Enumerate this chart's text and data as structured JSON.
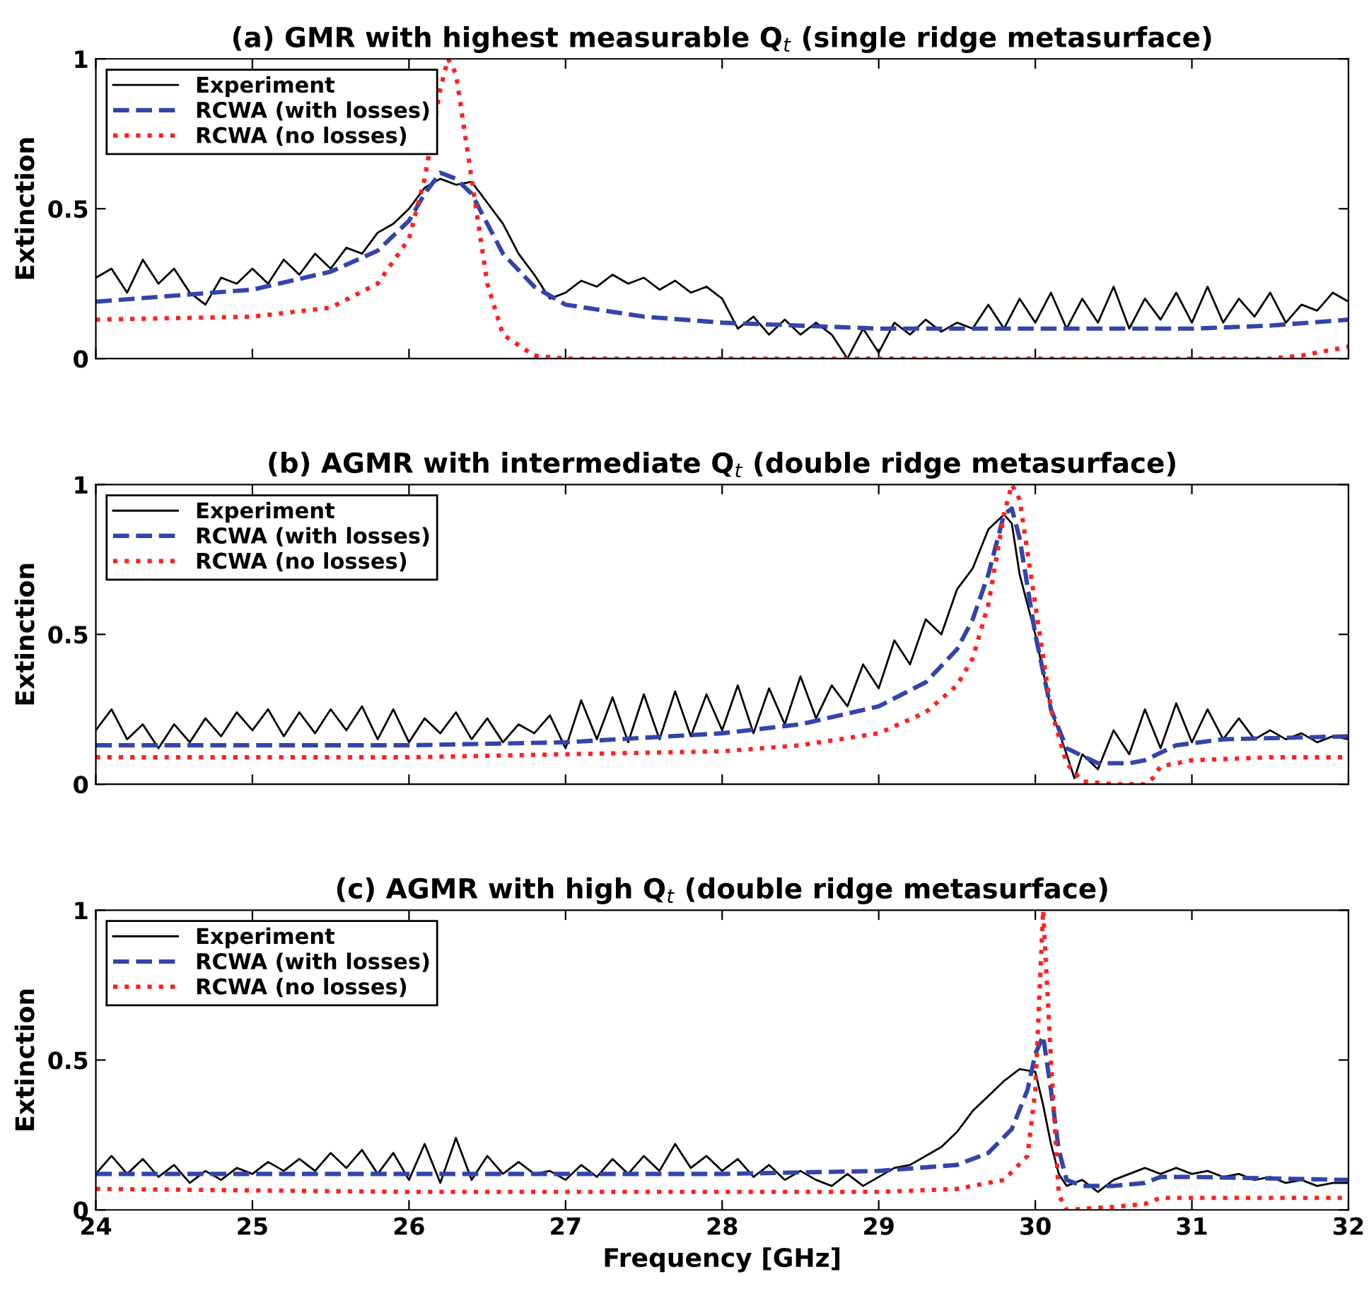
{
  "chart_data": [
    {
      "type": "line",
      "title": "(a) GMR with highest measurable Q$_{t}$ (single ridge metasurface)",
      "ylabel": "Extinction",
      "xlim": [
        24,
        32
      ],
      "ylim": [
        0,
        1
      ],
      "xticks": [
        24,
        25,
        26,
        27,
        28,
        29,
        30,
        31,
        32
      ],
      "yticks": [
        0,
        0.5,
        1
      ],
      "tick_labels": "y",
      "legend": "top left",
      "grid": false,
      "series": [
        {
          "name": "Experiment",
          "color": "#000000",
          "line_style": "solid",
          "x": [
            24,
            24.1,
            24.2,
            24.3,
            24.4,
            24.5,
            24.6,
            24.7,
            24.8,
            24.9,
            25.0,
            25.1,
            25.2,
            25.3,
            25.4,
            25.5,
            25.6,
            25.7,
            25.8,
            25.9,
            26.0,
            26.1,
            26.2,
            26.3,
            26.4,
            26.5,
            26.6,
            26.7,
            26.8,
            26.9,
            27.0,
            27.1,
            27.2,
            27.3,
            27.4,
            27.5,
            27.6,
            27.7,
            27.8,
            27.9,
            28.0,
            28.1,
            28.2,
            28.3,
            28.4,
            28.5,
            28.6,
            28.7,
            28.8,
            28.9,
            29.0,
            29.1,
            29.2,
            29.3,
            29.4,
            29.5,
            29.6,
            29.7,
            29.8,
            29.9,
            30.0,
            30.1,
            30.2,
            30.3,
            30.4,
            30.5,
            30.6,
            30.7,
            30.8,
            30.9,
            31.0,
            31.1,
            31.2,
            31.3,
            31.4,
            31.5,
            31.6,
            31.7,
            31.8,
            31.9,
            32.0
          ],
          "values": [
            0.27,
            0.3,
            0.22,
            0.33,
            0.25,
            0.3,
            0.22,
            0.18,
            0.27,
            0.25,
            0.3,
            0.25,
            0.33,
            0.28,
            0.35,
            0.3,
            0.37,
            0.35,
            0.42,
            0.45,
            0.5,
            0.57,
            0.6,
            0.58,
            0.59,
            0.52,
            0.45,
            0.35,
            0.28,
            0.2,
            0.22,
            0.26,
            0.24,
            0.28,
            0.25,
            0.27,
            0.23,
            0.26,
            0.22,
            0.24,
            0.2,
            0.1,
            0.14,
            0.08,
            0.13,
            0.08,
            0.12,
            0.08,
            0.0,
            0.1,
            0.02,
            0.12,
            0.08,
            0.13,
            0.09,
            0.12,
            0.1,
            0.18,
            0.1,
            0.2,
            0.12,
            0.22,
            0.1,
            0.2,
            0.12,
            0.24,
            0.1,
            0.2,
            0.13,
            0.22,
            0.12,
            0.24,
            0.12,
            0.2,
            0.14,
            0.22,
            0.12,
            0.18,
            0.16,
            0.22,
            0.19
          ]
        },
        {
          "name": "RCWA (with losses)",
          "color": "#3344aa",
          "line_style": "dashed",
          "x": [
            24,
            25,
            25.5,
            25.8,
            26.0,
            26.1,
            26.2,
            26.3,
            26.4,
            26.5,
            26.6,
            26.8,
            27.0,
            27.5,
            28,
            28.5,
            29,
            30,
            31,
            31.5,
            32
          ],
          "values": [
            0.19,
            0.23,
            0.29,
            0.36,
            0.46,
            0.55,
            0.62,
            0.6,
            0.55,
            0.45,
            0.35,
            0.24,
            0.18,
            0.14,
            0.12,
            0.11,
            0.1,
            0.1,
            0.1,
            0.11,
            0.13
          ]
        },
        {
          "name": "RCWA (no losses)",
          "color": "#ff2020",
          "line_style": "dotted",
          "x": [
            24,
            25,
            25.5,
            25.8,
            26.0,
            26.1,
            26.2,
            26.25,
            26.3,
            26.4,
            26.5,
            26.6,
            26.8,
            27,
            28,
            30,
            31.5,
            31.7,
            32
          ],
          "values": [
            0.13,
            0.14,
            0.17,
            0.25,
            0.4,
            0.6,
            0.9,
            1.0,
            0.95,
            0.6,
            0.25,
            0.08,
            0.01,
            0.0,
            0.0,
            0.0,
            0.0,
            0.01,
            0.04
          ]
        }
      ]
    },
    {
      "type": "line",
      "title": "(b) AGMR with intermediate Q$_{t}$ (double ridge metasurface)",
      "ylabel": "Extinction",
      "xlim": [
        24,
        32
      ],
      "ylim": [
        0,
        1
      ],
      "xticks": [
        24,
        25,
        26,
        27,
        28,
        29,
        30,
        31,
        32
      ],
      "yticks": [
        0,
        0.5,
        1
      ],
      "tick_labels": "y",
      "legend": "top left",
      "grid": false,
      "series": [
        {
          "name": "Experiment",
          "color": "#000000",
          "line_style": "solid",
          "x": [
            24,
            24.1,
            24.2,
            24.3,
            24.4,
            24.5,
            24.6,
            24.7,
            24.8,
            24.9,
            25.0,
            25.1,
            25.2,
            25.3,
            25.4,
            25.5,
            25.6,
            25.7,
            25.8,
            25.9,
            26.0,
            26.1,
            26.2,
            26.3,
            26.4,
            26.5,
            26.6,
            26.7,
            26.8,
            26.9,
            27.0,
            27.1,
            27.2,
            27.3,
            27.4,
            27.5,
            27.6,
            27.7,
            27.8,
            27.9,
            28.0,
            28.1,
            28.2,
            28.3,
            28.4,
            28.5,
            28.6,
            28.7,
            28.8,
            28.9,
            29.0,
            29.1,
            29.2,
            29.3,
            29.4,
            29.5,
            29.6,
            29.7,
            29.8,
            29.85,
            29.9,
            30.0,
            30.1,
            30.2,
            30.25,
            30.3,
            30.4,
            30.5,
            30.6,
            30.7,
            30.8,
            30.9,
            31.0,
            31.1,
            31.2,
            31.3,
            31.4,
            31.5,
            31.6,
            31.7,
            31.8,
            31.9,
            32.0
          ],
          "values": [
            0.18,
            0.25,
            0.15,
            0.2,
            0.12,
            0.2,
            0.14,
            0.22,
            0.16,
            0.24,
            0.18,
            0.25,
            0.16,
            0.24,
            0.17,
            0.25,
            0.18,
            0.26,
            0.15,
            0.25,
            0.14,
            0.22,
            0.17,
            0.24,
            0.15,
            0.22,
            0.14,
            0.2,
            0.17,
            0.23,
            0.12,
            0.28,
            0.15,
            0.29,
            0.14,
            0.3,
            0.15,
            0.31,
            0.16,
            0.3,
            0.18,
            0.33,
            0.17,
            0.32,
            0.2,
            0.36,
            0.22,
            0.33,
            0.26,
            0.4,
            0.32,
            0.48,
            0.4,
            0.55,
            0.5,
            0.65,
            0.72,
            0.85,
            0.9,
            0.87,
            0.7,
            0.5,
            0.25,
            0.1,
            0.02,
            0.1,
            0.05,
            0.18,
            0.1,
            0.25,
            0.12,
            0.27,
            0.14,
            0.25,
            0.15,
            0.22,
            0.15,
            0.18,
            0.15,
            0.17,
            0.14,
            0.16,
            0.15
          ]
        },
        {
          "name": "RCWA (with losses)",
          "color": "#3344aa",
          "line_style": "dashed",
          "x": [
            24,
            26,
            27,
            28,
            28.5,
            29,
            29.3,
            29.5,
            29.6,
            29.7,
            29.8,
            29.85,
            29.9,
            30.0,
            30.1,
            30.2,
            30.4,
            30.6,
            30.7,
            30.9,
            31.2,
            32
          ],
          "values": [
            0.13,
            0.13,
            0.14,
            0.17,
            0.2,
            0.26,
            0.34,
            0.45,
            0.55,
            0.7,
            0.9,
            0.92,
            0.82,
            0.5,
            0.25,
            0.12,
            0.07,
            0.07,
            0.08,
            0.13,
            0.15,
            0.16
          ]
        },
        {
          "name": "RCWA (no losses)",
          "color": "#ff2020",
          "line_style": "dotted",
          "x": [
            24,
            26,
            27,
            28,
            28.5,
            29,
            29.3,
            29.5,
            29.6,
            29.7,
            29.8,
            29.85,
            29.9,
            30.0,
            30.1,
            30.2,
            30.3,
            30.5,
            30.7,
            30.75,
            30.8,
            31.0,
            31.5,
            32
          ],
          "values": [
            0.09,
            0.09,
            0.1,
            0.11,
            0.13,
            0.17,
            0.24,
            0.33,
            0.42,
            0.6,
            0.9,
            1.0,
            0.95,
            0.6,
            0.25,
            0.07,
            0.01,
            0.0,
            0.0,
            0.02,
            0.06,
            0.08,
            0.09,
            0.09
          ]
        }
      ]
    },
    {
      "type": "line",
      "title": "(c) AGMR with high Q$_{t}$ (double ridge metasurface)",
      "xlabel": "Frequency [GHz]",
      "ylabel": "Extinction",
      "xlim": [
        24,
        32
      ],
      "ylim": [
        0,
        1
      ],
      "xticks": [
        24,
        25,
        26,
        27,
        28,
        29,
        30,
        31,
        32
      ],
      "yticks": [
        0,
        0.5,
        1
      ],
      "legend": "top left",
      "grid": false,
      "series": [
        {
          "name": "Experiment",
          "color": "#000000",
          "line_style": "solid",
          "x": [
            24,
            24.1,
            24.2,
            24.3,
            24.4,
            24.5,
            24.6,
            24.7,
            24.8,
            24.9,
            25.0,
            25.1,
            25.2,
            25.3,
            25.4,
            25.5,
            25.6,
            25.7,
            25.8,
            25.9,
            26.0,
            26.1,
            26.2,
            26.3,
            26.4,
            26.5,
            26.6,
            26.7,
            26.8,
            26.9,
            27.0,
            27.1,
            27.2,
            27.3,
            27.4,
            27.5,
            27.6,
            27.7,
            27.8,
            27.9,
            28.0,
            28.1,
            28.2,
            28.3,
            28.4,
            28.5,
            28.6,
            28.7,
            28.8,
            28.9,
            29.0,
            29.1,
            29.2,
            29.3,
            29.4,
            29.5,
            29.6,
            29.7,
            29.8,
            29.9,
            30.0,
            30.05,
            30.1,
            30.15,
            30.2,
            30.3,
            30.4,
            30.5,
            30.6,
            30.7,
            30.8,
            30.9,
            31.0,
            31.1,
            31.2,
            31.3,
            31.4,
            31.5,
            31.6,
            31.7,
            31.8,
            31.9,
            32.0
          ],
          "values": [
            0.12,
            0.18,
            0.12,
            0.17,
            0.11,
            0.15,
            0.09,
            0.13,
            0.1,
            0.14,
            0.12,
            0.16,
            0.13,
            0.17,
            0.13,
            0.19,
            0.14,
            0.2,
            0.12,
            0.19,
            0.1,
            0.22,
            0.09,
            0.24,
            0.1,
            0.18,
            0.12,
            0.16,
            0.12,
            0.13,
            0.1,
            0.15,
            0.11,
            0.17,
            0.12,
            0.18,
            0.13,
            0.22,
            0.14,
            0.18,
            0.13,
            0.17,
            0.11,
            0.15,
            0.1,
            0.13,
            0.1,
            0.08,
            0.12,
            0.08,
            0.11,
            0.14,
            0.15,
            0.18,
            0.21,
            0.26,
            0.33,
            0.38,
            0.43,
            0.47,
            0.46,
            0.35,
            0.22,
            0.12,
            0.08,
            0.1,
            0.06,
            0.1,
            0.12,
            0.14,
            0.12,
            0.14,
            0.12,
            0.13,
            0.11,
            0.12,
            0.1,
            0.11,
            0.09,
            0.1,
            0.08,
            0.09,
            0.09
          ]
        },
        {
          "name": "RCWA (with losses)",
          "color": "#3344aa",
          "line_style": "dashed",
          "x": [
            24,
            26,
            28,
            29,
            29.5,
            29.7,
            29.85,
            29.95,
            30.0,
            30.05,
            30.1,
            30.15,
            30.2,
            30.3,
            30.5,
            30.7,
            30.8,
            31,
            32
          ],
          "values": [
            0.12,
            0.12,
            0.12,
            0.13,
            0.15,
            0.19,
            0.27,
            0.4,
            0.52,
            0.58,
            0.4,
            0.2,
            0.1,
            0.08,
            0.08,
            0.09,
            0.11,
            0.11,
            0.1
          ]
        },
        {
          "name": "RCWA (no losses)",
          "color": "#ff2020",
          "line_style": "dotted",
          "x": [
            24,
            26,
            28,
            29,
            29.5,
            29.8,
            29.95,
            30.0,
            30.05,
            30.1,
            30.15,
            30.2,
            30.5,
            30.7,
            30.8,
            31,
            32
          ],
          "values": [
            0.07,
            0.06,
            0.06,
            0.06,
            0.07,
            0.1,
            0.18,
            0.4,
            1.0,
            0.5,
            0.05,
            0.0,
            0.01,
            0.02,
            0.04,
            0.04,
            0.04
          ]
        }
      ]
    }
  ]
}
